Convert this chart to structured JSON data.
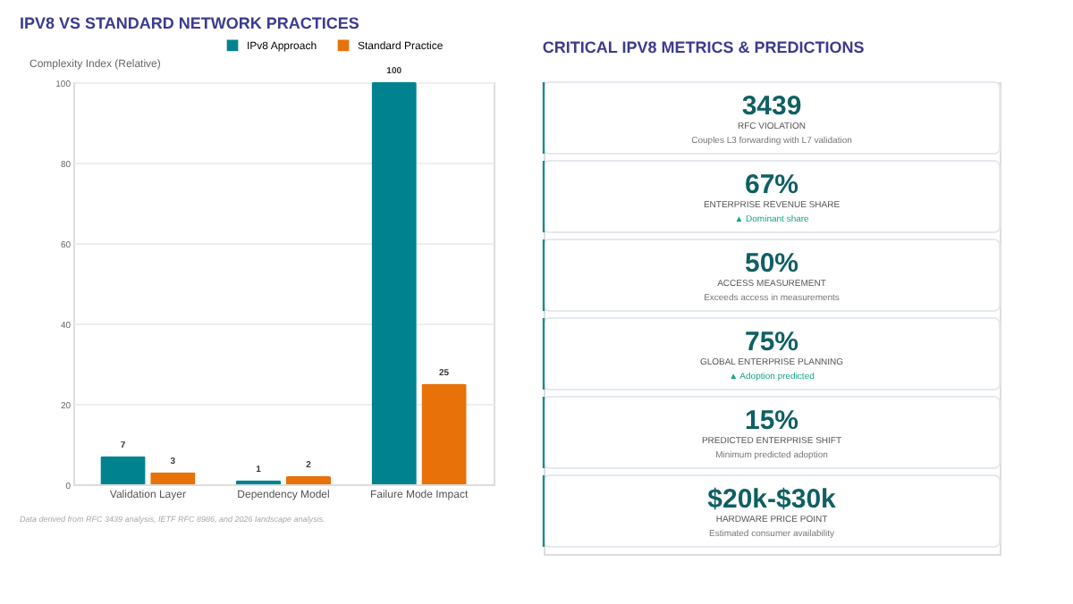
{
  "chart_data": [
    {
      "type": "bar",
      "title": "IPV8 VS STANDARD NETWORK PRACTICES",
      "ylabel": "Complexity Index (Relative)",
      "categories": [
        "Validation Layer",
        "Dependency Model",
        "Failure Mode Impact"
      ],
      "series": [
        {
          "name": "IPv8 Approach",
          "color": "#00838f",
          "values": [
            7,
            1,
            100
          ]
        },
        {
          "name": "Standard Practice",
          "color": "#e8710a",
          "values": [
            3,
            2,
            25
          ]
        }
      ],
      "ylim": [
        0,
        100
      ],
      "yticks": [
        0,
        20,
        40,
        60,
        80,
        100
      ],
      "grid": "y",
      "legend": "top",
      "data_labels": true,
      "annotations": [
        "Data derived from RFC 3439 analysis, IETF RFC 8986, and 2026 landscape analysis."
      ]
    },
    {
      "type": "other",
      "title": "CRITICAL IPV8 METRICS & PREDICTIONS",
      "annotations": [
        "3439",
        "RFC VIOLATION",
        "Couples L3 forwarding with L7 validation",
        "67%",
        "ENTERPRISE REVENUE SHARE",
        "▲ Dominant share",
        "50%",
        "ACCESS MEASUREMENT",
        "Exceeds access in measurements",
        "75%",
        "GLOBAL ENTERPRISE PLANNING",
        "▲ Adoption predicted",
        "15%",
        "PREDICTED ENTERPRISE SHIFT",
        "Minimum predicted adoption",
        "$20k-$30k",
        "HARDWARE PRICE POINT",
        "Estimated consumer availability"
      ]
    }
  ]
}
